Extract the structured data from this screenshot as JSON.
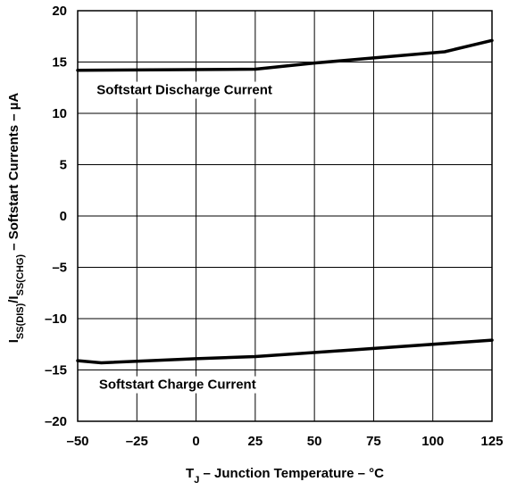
{
  "chart_data": {
    "type": "line",
    "xlabel": {
      "main": "T",
      "sub": "J",
      "rest": " – Junction Temperature – °C"
    },
    "ylabel": {
      "p1": "I",
      "s1": "SS(DIS)",
      "p2": "/I",
      "s2": "SS(CHG)",
      "rest": " – Softstart Currents – µA"
    },
    "xlim": [
      -50,
      125
    ],
    "ylim": [
      -20,
      20
    ],
    "xticks": [
      -50,
      -25,
      0,
      25,
      50,
      75,
      100,
      125
    ],
    "yticks": [
      20,
      15,
      10,
      5,
      0,
      -5,
      -10,
      -15,
      -20
    ],
    "xtick_labels": [
      "–50",
      "–25",
      "0",
      "25",
      "50",
      "75",
      "100",
      "125"
    ],
    "ytick_labels": [
      "20",
      "15",
      "10",
      "5",
      "0",
      "–5",
      "–10",
      "–15",
      "–20"
    ],
    "grid": true,
    "series": [
      {
        "name": "Softstart Discharge Current",
        "x": [
          -50,
          25,
          50,
          105,
          125
        ],
        "y": [
          14.2,
          14.3,
          14.9,
          16.0,
          17.1
        ]
      },
      {
        "name": "Softstart Charge Current",
        "x": [
          -50,
          -40,
          0,
          25,
          125
        ],
        "y": [
          -14.1,
          -14.3,
          -13.9,
          -13.7,
          -12.1
        ]
      }
    ],
    "annotations": [
      {
        "text": "Softstart Discharge Current",
        "x": -42,
        "y": 12.3
      },
      {
        "text": "Softstart Charge Current",
        "x": -41,
        "y": -16.4
      }
    ]
  }
}
